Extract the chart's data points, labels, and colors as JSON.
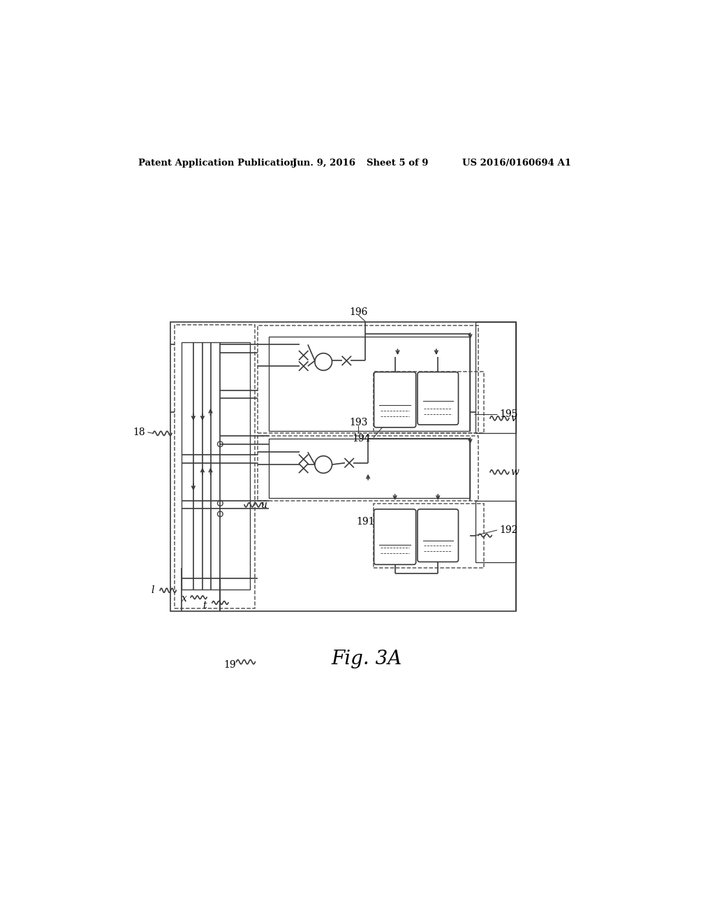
{
  "bg_color": "#ffffff",
  "lc": "#3a3a3a",
  "dc": "#555555",
  "header_text": "Patent Application Publication",
  "header_date": "Jun. 9, 2016",
  "header_sheet": "Sheet 5 of 9",
  "header_patent": "US 2016/0160694 A1",
  "fig_label": "Fig. 3A",
  "fig_number": "19",
  "lw": 1.2
}
